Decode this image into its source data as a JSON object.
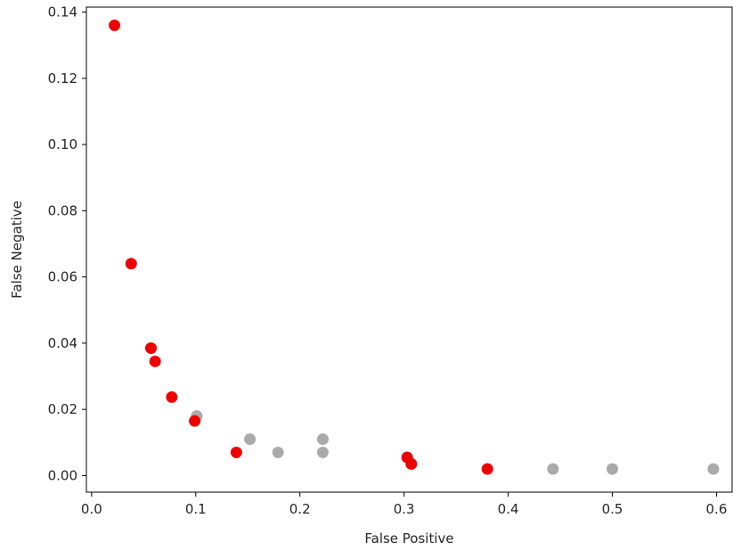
{
  "chart_data": {
    "type": "scatter",
    "xlabel": "False Positive",
    "ylabel": "False Negative",
    "xlim": [
      -0.005,
      0.615
    ],
    "ylim": [
      -0.005,
      0.1415
    ],
    "xticks": [
      0.0,
      0.1,
      0.2,
      0.3,
      0.4,
      0.5,
      0.6
    ],
    "xtick_labels": [
      "0.0",
      "0.1",
      "0.2",
      "0.3",
      "0.4",
      "0.5",
      "0.6"
    ],
    "yticks": [
      0.0,
      0.02,
      0.04,
      0.06,
      0.08,
      0.1,
      0.12,
      0.14
    ],
    "ytick_labels": [
      "0.00",
      "0.02",
      "0.04",
      "0.06",
      "0.08",
      "0.10",
      "0.12",
      "0.14"
    ],
    "grid": false,
    "series": [
      {
        "color": "#aaaaaa",
        "points": [
          {
            "x": 0.101,
            "y": 0.018
          },
          {
            "x": 0.152,
            "y": 0.011
          },
          {
            "x": 0.179,
            "y": 0.007
          },
          {
            "x": 0.222,
            "y": 0.011
          },
          {
            "x": 0.222,
            "y": 0.007
          },
          {
            "x": 0.443,
            "y": 0.002
          },
          {
            "x": 0.5,
            "y": 0.002
          },
          {
            "x": 0.597,
            "y": 0.002
          }
        ]
      },
      {
        "color": "#ee0000",
        "points": [
          {
            "x": 0.022,
            "y": 0.136
          },
          {
            "x": 0.038,
            "y": 0.064
          },
          {
            "x": 0.057,
            "y": 0.0385
          },
          {
            "x": 0.061,
            "y": 0.0345
          },
          {
            "x": 0.077,
            "y": 0.0237
          },
          {
            "x": 0.099,
            "y": 0.0165
          },
          {
            "x": 0.139,
            "y": 0.007
          },
          {
            "x": 0.303,
            "y": 0.0055
          },
          {
            "x": 0.307,
            "y": 0.0035
          },
          {
            "x": 0.38,
            "y": 0.002
          }
        ]
      }
    ]
  }
}
